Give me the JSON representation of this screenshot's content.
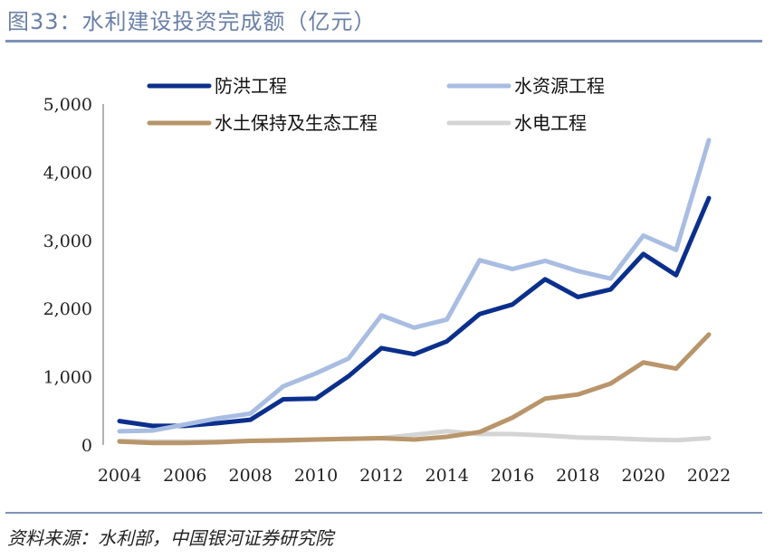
{
  "figure": {
    "title": "图33：水利建设投资完成额（亿元）",
    "source": "资料来源：水利部，中国银河证券研究院"
  },
  "chart_data": {
    "type": "line",
    "title": "水利建设投资完成额（亿元）",
    "xlabel": "",
    "ylabel": "",
    "x": [
      2004,
      2005,
      2006,
      2007,
      2008,
      2009,
      2010,
      2011,
      2012,
      2013,
      2014,
      2015,
      2016,
      2017,
      2018,
      2019,
      2020,
      2021,
      2022
    ],
    "xticks": [
      "2004",
      "2006",
      "2008",
      "2010",
      "2012",
      "2014",
      "2016",
      "2018",
      "2020",
      "2022"
    ],
    "ylim": [
      0,
      5000
    ],
    "yticks": [
      0,
      1000,
      2000,
      3000,
      4000,
      5000
    ],
    "ytick_labels": [
      "0",
      "1,000",
      "2,000",
      "3,000",
      "4,000",
      "5,000"
    ],
    "grid": false,
    "legend_position": "top",
    "series": [
      {
        "name": "防洪工程",
        "color": "#0b2f8c",
        "values": [
          350,
          280,
          280,
          320,
          370,
          670,
          680,
          1010,
          1420,
          1330,
          1520,
          1920,
          2060,
          2430,
          2170,
          2280,
          2800,
          2490,
          3620
        ]
      },
      {
        "name": "水资源工程",
        "color": "#a9bde2",
        "values": [
          200,
          210,
          300,
          390,
          460,
          860,
          1050,
          1270,
          1900,
          1720,
          1840,
          2710,
          2580,
          2700,
          2550,
          2440,
          3070,
          2860,
          4470
        ]
      },
      {
        "name": "水土保持及生态工程",
        "color": "#b8956a",
        "values": [
          50,
          30,
          30,
          40,
          60,
          70,
          80,
          90,
          100,
          80,
          120,
          190,
          400,
          680,
          740,
          900,
          1210,
          1120,
          1620
        ]
      },
      {
        "name": "水电工程",
        "color": "#d4d4d4",
        "values": [
          60,
          50,
          50,
          50,
          60,
          60,
          80,
          90,
          100,
          150,
          200,
          160,
          160,
          140,
          110,
          100,
          80,
          70,
          100
        ]
      }
    ]
  }
}
